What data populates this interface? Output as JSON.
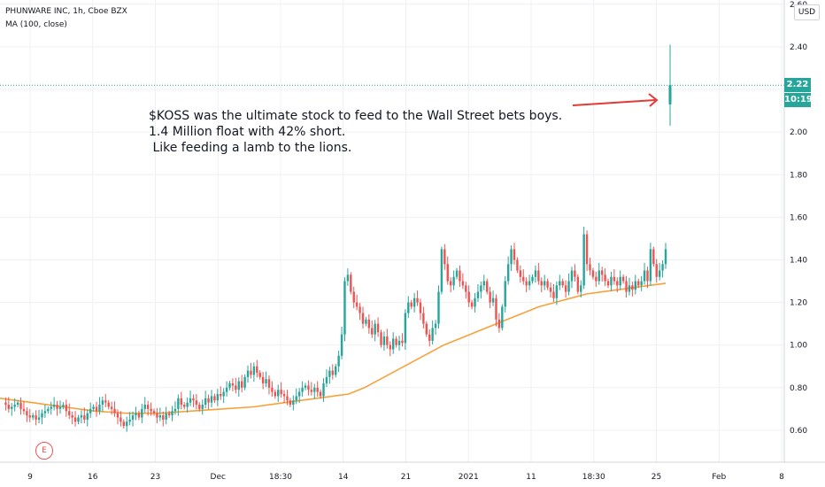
{
  "legend": {
    "title": "PHUNWARE INC, 1h, Cboe BZX",
    "indicator": "MA (100, close)"
  },
  "currency_button": "USD",
  "annotation": {
    "lines": [
      "$KOSS was the ultimate stock to feed to the Wall Street bets boys.",
      "1.4 Million float with 42% short.",
      " Like feeding a lamb to the lions."
    ]
  },
  "last_price": {
    "value_label": "2.22",
    "countdown_label": "10:19",
    "color": "#26a69a"
  },
  "earnings_badge": "E",
  "colors": {
    "up": "#26a69a",
    "down": "#ef5350",
    "ma": "#f6a23c",
    "arrow": "#e53935",
    "grid": "#eef0f3"
  },
  "chart_data": {
    "type": "candlestick",
    "title": "PHUNWARE INC, 1h, Cboe BZX",
    "y_ticks": [
      "2.60",
      "2.40",
      "2.20",
      "2.00",
      "1.80",
      "1.60",
      "1.40",
      "1.20",
      "1.00",
      "0.80",
      "0.60"
    ],
    "x_ticks": [
      "9",
      "16",
      "23",
      "Dec",
      "18:30",
      "14",
      "21",
      "2021",
      "11",
      "18:30",
      "25",
      "Feb",
      "8"
    ],
    "ylim": [
      0.45,
      2.62
    ],
    "grid": true,
    "last_price": 2.22,
    "price_series": [
      0.73,
      0.72,
      0.7,
      0.71,
      0.72,
      0.73,
      0.7,
      0.69,
      0.67,
      0.66,
      0.67,
      0.65,
      0.66,
      0.68,
      0.69,
      0.7,
      0.71,
      0.72,
      0.7,
      0.71,
      0.72,
      0.69,
      0.67,
      0.66,
      0.64,
      0.66,
      0.67,
      0.65,
      0.68,
      0.7,
      0.71,
      0.69,
      0.72,
      0.74,
      0.73,
      0.71,
      0.7,
      0.68,
      0.66,
      0.64,
      0.62,
      0.64,
      0.65,
      0.67,
      0.68,
      0.66,
      0.7,
      0.72,
      0.7,
      0.69,
      0.68,
      0.66,
      0.67,
      0.65,
      0.68,
      0.67,
      0.69,
      0.7,
      0.75,
      0.72,
      0.71,
      0.73,
      0.75,
      0.74,
      0.72,
      0.7,
      0.72,
      0.75,
      0.73,
      0.76,
      0.74,
      0.77,
      0.76,
      0.78,
      0.8,
      0.82,
      0.81,
      0.79,
      0.83,
      0.8,
      0.85,
      0.88,
      0.86,
      0.9,
      0.87,
      0.85,
      0.82,
      0.84,
      0.8,
      0.78,
      0.76,
      0.79,
      0.77,
      0.76,
      0.74,
      0.72,
      0.74,
      0.76,
      0.78,
      0.8,
      0.81,
      0.79,
      0.78,
      0.8,
      0.78,
      0.76,
      0.82,
      0.85,
      0.88,
      0.86,
      0.9,
      0.95,
      1.05,
      1.3,
      1.33,
      1.25,
      1.2,
      1.18,
      1.15,
      1.1,
      1.12,
      1.08,
      1.05,
      1.1,
      1.06,
      1.0,
      1.04,
      1.0,
      0.98,
      1.03,
      1.0,
      1.02,
      1.01,
      1.15,
      1.2,
      1.18,
      1.22,
      1.2,
      1.15,
      1.1,
      1.05,
      1.02,
      1.08,
      1.1,
      1.25,
      1.45,
      1.38,
      1.3,
      1.28,
      1.32,
      1.35,
      1.3,
      1.28,
      1.25,
      1.2,
      1.18,
      1.22,
      1.25,
      1.28,
      1.3,
      1.25,
      1.2,
      1.22,
      1.12,
      1.08,
      1.18,
      1.3,
      1.38,
      1.45,
      1.4,
      1.35,
      1.32,
      1.3,
      1.28,
      1.3,
      1.32,
      1.35,
      1.3,
      1.28,
      1.3,
      1.27,
      1.25,
      1.22,
      1.28,
      1.3,
      1.28,
      1.25,
      1.3,
      1.35,
      1.32,
      1.25,
      1.28,
      1.52,
      1.38,
      1.35,
      1.32,
      1.3,
      1.35,
      1.33,
      1.3,
      1.28,
      1.32,
      1.3,
      1.28,
      1.32,
      1.3,
      1.25,
      1.28,
      1.26,
      1.3,
      1.28,
      1.3,
      1.35,
      1.3,
      1.45,
      1.38,
      1.32,
      1.35,
      1.38,
      1.45
    ],
    "ma_period": 100,
    "ma_series": [
      0.75,
      0.74,
      0.73,
      0.72,
      0.71,
      0.7,
      0.69,
      0.685,
      0.68,
      0.68,
      0.68,
      0.685,
      0.69,
      0.695,
      0.7,
      0.705,
      0.71,
      0.72,
      0.73,
      0.74,
      0.75,
      0.76,
      0.77,
      0.8,
      0.84,
      0.88,
      0.92,
      0.96,
      1.0,
      1.03,
      1.06,
      1.09,
      1.12,
      1.15,
      1.18,
      1.2,
      1.22,
      1.24,
      1.25,
      1.26,
      1.27,
      1.28,
      1.29
    ],
    "final_bar": {
      "open": 2.13,
      "high": 2.41,
      "low": 2.03,
      "close": 2.22
    }
  }
}
